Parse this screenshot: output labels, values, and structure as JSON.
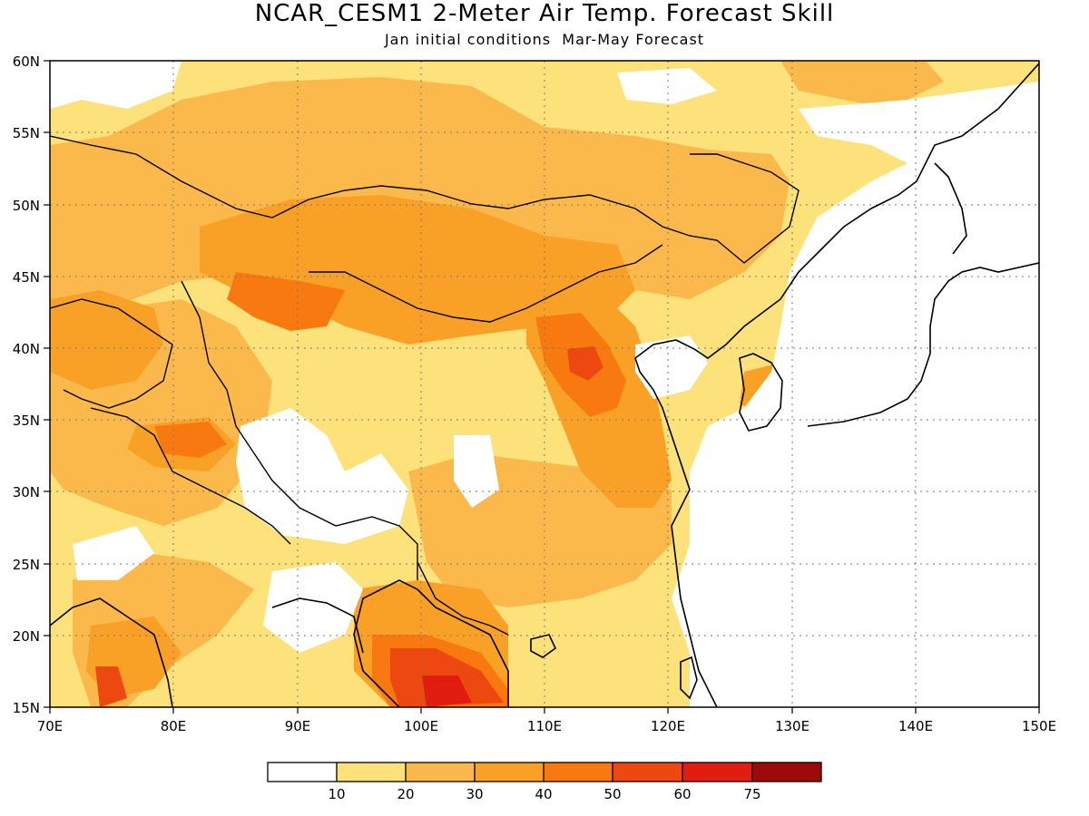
{
  "title": "NCAR_CESM1 2-Meter Air Temp. Forecast Skill",
  "subtitle": "Jan initial conditions  Mar-May Forecast",
  "map": {
    "lon_range": [
      70,
      150
    ],
    "lat_range": [
      15,
      60
    ],
    "lon_ticks": [
      "70E",
      "80E",
      "90E",
      "100E",
      "110E",
      "120E",
      "130E",
      "140E",
      "150E"
    ],
    "lat_ticks": [
      "60N",
      "55N",
      "50N",
      "45N",
      "40N",
      "35N",
      "30N",
      "25N",
      "20N",
      "15N"
    ],
    "gridlines": true,
    "gridline_style": "dotted"
  },
  "colorbar": {
    "colors": [
      "#ffffff",
      "#fde17a",
      "#fcb94b",
      "#f9a027",
      "#f7790f",
      "#ee4811",
      "#e11d12",
      "#9c0a0a"
    ],
    "labels": [
      "10",
      "20",
      "30",
      "40",
      "50",
      "60",
      "75"
    ]
  },
  "fields": {
    "c10": "#fde17a",
    "c20": "#fcb94b",
    "c30": "#f9a027",
    "c40": "#f7790f",
    "c50": "#ee4811",
    "c60": "#e11d12"
  }
}
